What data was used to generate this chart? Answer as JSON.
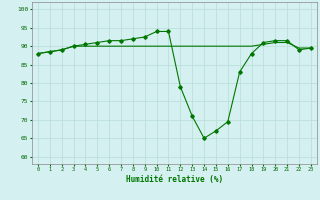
{
  "x": [
    0,
    1,
    2,
    3,
    4,
    5,
    6,
    7,
    8,
    9,
    10,
    11,
    12,
    13,
    14,
    15,
    16,
    17,
    18,
    19,
    20,
    21,
    22,
    23
  ],
  "y_main": [
    88,
    88.5,
    89,
    90,
    90.5,
    91,
    91.5,
    91.5,
    92,
    92.5,
    94,
    94,
    79,
    71,
    65,
    67,
    69.5,
    83,
    88,
    91,
    91.5,
    91.5,
    89,
    89.5
  ],
  "y_smooth": [
    88,
    88.5,
    89,
    90,
    90,
    90,
    90,
    90,
    90,
    90,
    90,
    90,
    90,
    90,
    90,
    90,
    90,
    90,
    90,
    90.5,
    91,
    91,
    89.5,
    89.5
  ],
  "line_color": "#007700",
  "bg_color": "#d4f0f0",
  "grid_color": "#b8ddd8",
  "xlabel": "Humidité relative (%)",
  "ylabel_ticks": [
    60,
    65,
    70,
    75,
    80,
    85,
    90,
    95,
    100
  ],
  "xlim": [
    -0.5,
    23.5
  ],
  "ylim": [
    58,
    102
  ]
}
